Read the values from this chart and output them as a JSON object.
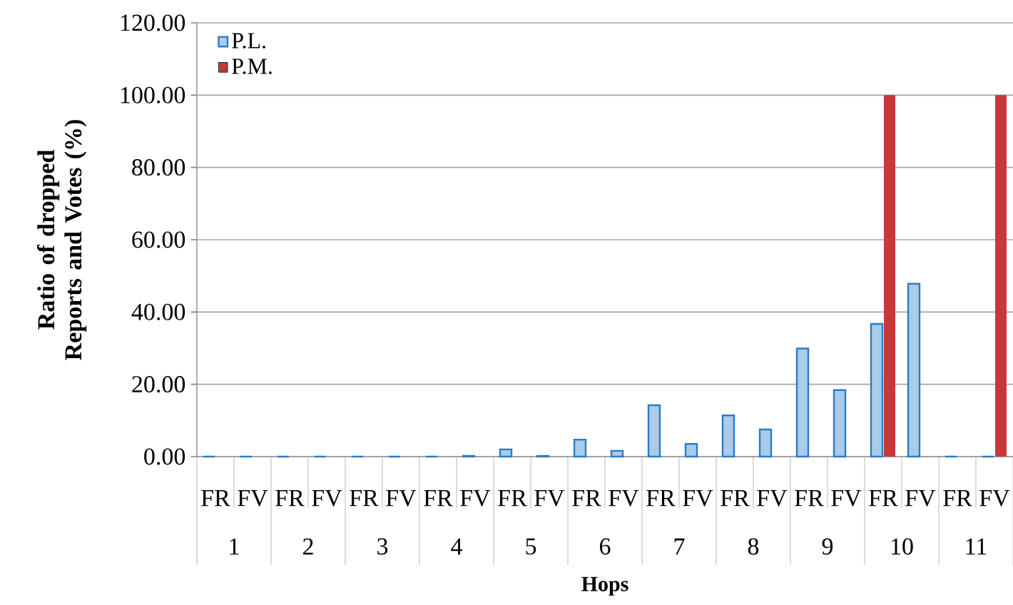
{
  "chart_data": {
    "type": "bar",
    "xlabel": "Hops",
    "ylabel": "Ratio of dropped Reports and Votes (%)",
    "categories": [
      "FR",
      "FV",
      "FR",
      "FV",
      "FR",
      "FV",
      "FR",
      "FV",
      "FR",
      "FV",
      "FR",
      "FV",
      "FR",
      "FV",
      "FR",
      "FV",
      "FR",
      "FV",
      "FR",
      "FV",
      "FR",
      "FV"
    ],
    "annotations": [
      "1",
      "2",
      "3",
      "4",
      "5",
      "6",
      "7",
      "8",
      "9",
      "10",
      "11"
    ],
    "series": [
      {
        "name": "P.L.",
        "color": "#2a7cc8",
        "values": [
          0,
          0,
          0,
          0,
          0,
          0,
          0,
          0.2,
          2.0,
          0.2,
          4.7,
          1.6,
          14.2,
          3.5,
          11.4,
          7.5,
          29.9,
          18.4,
          36.7,
          47.8,
          0,
          0
        ]
      },
      {
        "name": "P.M.",
        "color": "#c8383a",
        "values": [
          0,
          0,
          0,
          0,
          0,
          0,
          0,
          0,
          0,
          0,
          0,
          0,
          0,
          0,
          0,
          0,
          0,
          0,
          100,
          0,
          0,
          100
        ]
      }
    ],
    "ylim": [
      0,
      120
    ],
    "yticks": [
      {
        "value": 0,
        "label": "0.00"
      },
      {
        "value": 20,
        "label": "20.00"
      },
      {
        "value": 40,
        "label": "40.00"
      },
      {
        "value": 60,
        "label": "60.00"
      },
      {
        "value": 80,
        "label": "80.00"
      },
      {
        "value": 100,
        "label": "100.00"
      },
      {
        "value": 120,
        "label": "120.00"
      }
    ],
    "grid": "y",
    "legend": "top left"
  }
}
